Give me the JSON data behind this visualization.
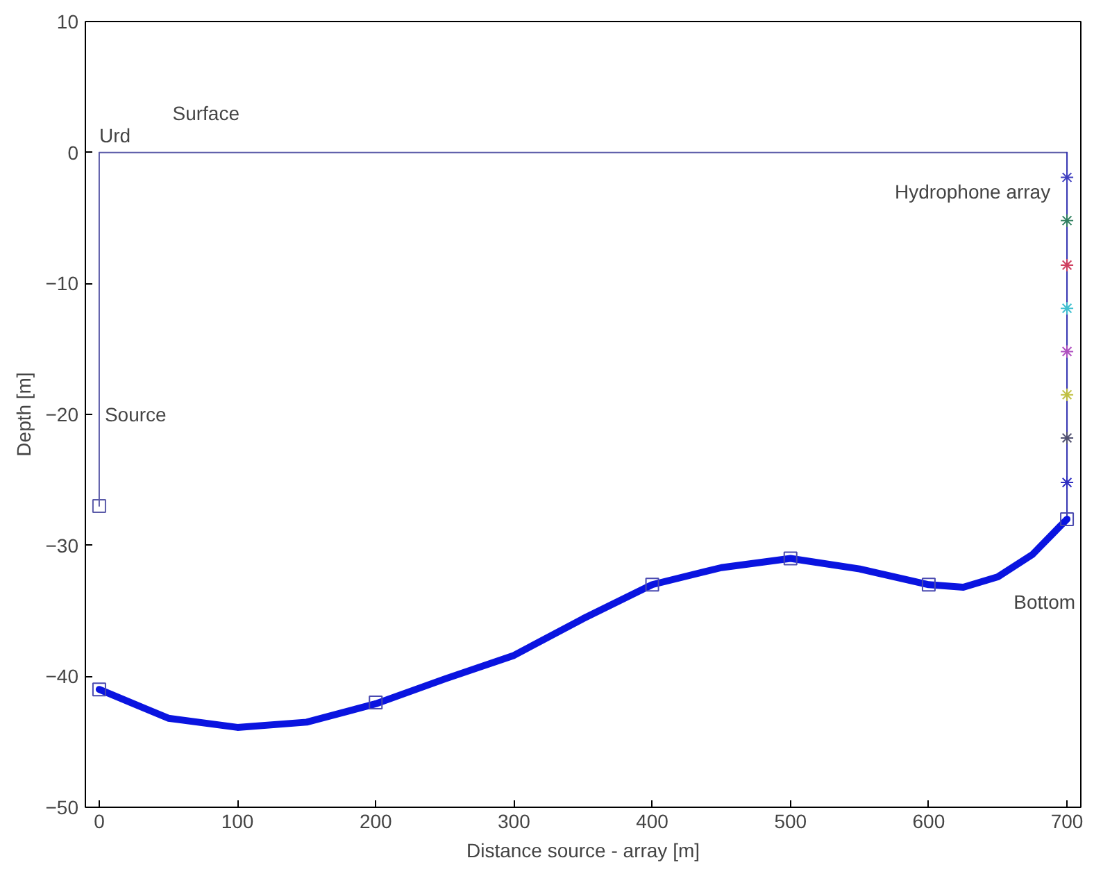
{
  "chart_data": {
    "type": "line",
    "xlabel": "Distance source - array [m]",
    "ylabel": "Depth [m]",
    "xlim": [
      -10,
      710
    ],
    "ylim": [
      -50,
      10
    ],
    "xticks": [
      0,
      100,
      200,
      300,
      400,
      500,
      600,
      700
    ],
    "yticks": [
      -50,
      -40,
      -30,
      -20,
      -10,
      0,
      10
    ],
    "grid": false,
    "series": [
      {
        "color": "#5a5aa8",
        "marker": "none",
        "x": [
          0,
          700
        ],
        "values": [
          0,
          0
        ]
      },
      {
        "color": "#5a5aa8",
        "marker": "none",
        "x": [
          0,
          0
        ],
        "values": [
          0,
          -27
        ]
      },
      {
        "type": "scatter",
        "color": "#5a5aa8",
        "marker": "square",
        "x": [
          0
        ],
        "values": [
          -27
        ]
      },
      {
        "color": "#3030b0",
        "marker": "none",
        "x": [
          700,
          700
        ],
        "values": [
          0,
          -28
        ]
      },
      {
        "type": "scatter",
        "color": "#3030c0",
        "marker": "cross",
        "x": [
          700,
          700,
          700,
          700,
          700,
          700,
          700,
          700
        ],
        "values": [
          -1.9,
          -5.2,
          -8.6,
          -11.9,
          -15.2,
          -18.5,
          -21.8,
          -25.2
        ],
        "colors": [
          "#4040c0",
          "#308060",
          "#d04060",
          "#40c0d0",
          "#b050c0",
          "#c0c040",
          "#505070",
          "#3030c0"
        ]
      },
      {
        "color": "#0a14e0",
        "marker": "none",
        "x": [
          0,
          50,
          100,
          150,
          200,
          250,
          300,
          350,
          400,
          450,
          500,
          550,
          600,
          625,
          650,
          675,
          700
        ],
        "values": [
          -41,
          -43.2,
          -43.9,
          -43.5,
          -42.1,
          -40.2,
          -38.4,
          -35.6,
          -33,
          -31.7,
          -31,
          -31.8,
          -33,
          -33.2,
          -32.4,
          -30.7,
          -28
        ]
      },
      {
        "type": "scatter",
        "color": "#4a4ab0",
        "marker": "square",
        "x": [
          0,
          200,
          400,
          500,
          600,
          700
        ],
        "values": [
          -41,
          -42,
          -33,
          -31,
          -33,
          -28
        ]
      }
    ],
    "annotations": [
      "Surface",
      "Urd",
      "Source",
      "Hydrophone array",
      "Bottom"
    ]
  }
}
